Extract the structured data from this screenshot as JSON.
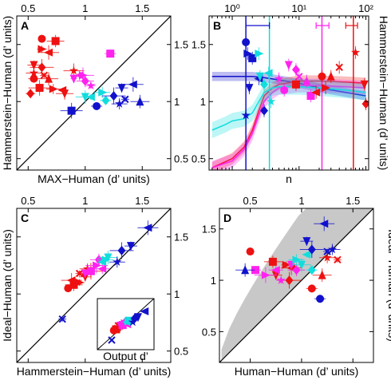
{
  "colors": {
    "red": "#ee1111",
    "magenta": "#ff22ee",
    "cyan": "#11dddd",
    "blue": "#1111cc",
    "gray": "#c8c8c8",
    "black": "#000000"
  },
  "chart_data": [
    {
      "panel": "A",
      "type": "scatter",
      "xlabel": "MAX−Human (d’ units)",
      "ylabel": "Hammerstein−Human (d’ units)",
      "xlim": [
        0.4,
        1.75
      ],
      "ylim": [
        0.4,
        1.75
      ],
      "xticks": [
        "0.5",
        "1",
        "1.5"
      ],
      "yticks": [
        "0.5",
        "1",
        "1.5"
      ],
      "x_axis_side": "top",
      "y_axis_side": "right",
      "diagonal": true,
      "series": [
        {
          "color": "red",
          "points": [
            [
              0.62,
              1.55
            ],
            [
              0.74,
              1.53
            ],
            [
              0.62,
              1.46
            ],
            [
              0.68,
              1.43
            ],
            [
              0.55,
              1.32
            ],
            [
              0.62,
              1.3
            ],
            [
              0.55,
              1.25
            ],
            [
              0.64,
              1.23
            ],
            [
              0.68,
              1.2
            ],
            [
              0.55,
              1.2
            ],
            [
              0.6,
              1.12
            ],
            [
              0.72,
              1.11
            ],
            [
              0.8,
              1.1
            ],
            [
              0.82,
              1.07
            ],
            [
              0.52,
              1.07
            ],
            [
              0.9,
              1.27
            ]
          ]
        },
        {
          "color": "magenta",
          "points": [
            [
              1.22,
              1.42
            ],
            [
              0.98,
              1.23
            ],
            [
              0.95,
              1.23
            ],
            [
              0.9,
              1.2
            ],
            [
              1.0,
              1.18
            ],
            [
              1.05,
              1.14
            ]
          ]
        },
        {
          "color": "cyan",
          "points": [
            [
              1.15,
              1.08
            ],
            [
              1.05,
              1.04
            ],
            [
              1.0,
              1.04
            ],
            [
              1.18,
              1.01
            ]
          ]
        },
        {
          "color": "blue",
          "points": [
            [
              1.42,
              1.15
            ],
            [
              1.32,
              1.12
            ],
            [
              1.25,
              1.05
            ],
            [
              1.3,
              0.98
            ],
            [
              1.35,
              1.02
            ],
            [
              1.48,
              1.0
            ],
            [
              1.1,
              0.96
            ],
            [
              0.88,
              0.92
            ]
          ]
        }
      ]
    },
    {
      "panel": "B",
      "type": "line",
      "xlabel": "n",
      "ylabel": "Hammerstein−Human (d’ units)",
      "xscale": "log",
      "xlim": [
        0.45,
        110
      ],
      "ylim": [
        0.4,
        1.75
      ],
      "xticks": [
        "10⁰",
        "10¹",
        "10²"
      ],
      "yticks": [
        "0.5",
        "1",
        "1.5"
      ],
      "x_axis_side": "top",
      "y_axis_side": "right",
      "series": [
        {
          "color": "blue",
          "x": [
            0.5,
            1,
            2,
            3,
            5,
            10,
            20,
            50,
            100
          ],
          "y": [
            1.22,
            1.22,
            1.22,
            1.21,
            1.19,
            1.16,
            1.12,
            1.08,
            1.05
          ]
        },
        {
          "color": "red",
          "x": [
            0.5,
            1,
            1.5,
            2,
            2.5,
            3,
            4,
            5,
            10,
            20,
            50,
            100
          ],
          "y": [
            0.42,
            0.5,
            0.6,
            0.75,
            0.92,
            1.05,
            1.12,
            1.15,
            1.18,
            1.18,
            1.17,
            1.16
          ]
        },
        {
          "color": "magenta",
          "x": [
            0.5,
            1,
            1.5,
            2,
            2.5,
            3,
            4,
            5,
            10,
            20,
            50,
            100
          ],
          "y": [
            0.42,
            0.48,
            0.58,
            0.72,
            0.88,
            1.0,
            1.08,
            1.12,
            1.14,
            1.14,
            1.13,
            1.12
          ]
        },
        {
          "color": "cyan",
          "x": [
            0.5,
            0.8,
            1,
            1.5,
            2,
            2.5,
            3,
            4,
            5,
            10,
            20,
            50,
            100
          ],
          "y": [
            0.75,
            0.8,
            0.83,
            0.85,
            0.9,
            1.0,
            1.08,
            1.12,
            1.13,
            1.13,
            1.12,
            1.1,
            1.08
          ]
        }
      ],
      "vlines": [
        {
          "color": "blue",
          "x": 1.6
        },
        {
          "color": "cyan",
          "x": 3.6
        },
        {
          "color": "magenta",
          "x": 22
        },
        {
          "color": "red",
          "x": 65
        }
      ],
      "top_errorbars": [
        {
          "color": "blue",
          "x": [
            1.6,
            3.6
          ]
        },
        {
          "color": "magenta",
          "x": [
            18,
            28
          ]
        },
        {
          "color": "red",
          "x": [
            50,
            75
          ]
        }
      ],
      "markers": [
        {
          "color": "blue",
          "points": [
            [
              1.6,
              1.52
            ],
            [
              2.0,
              1.38
            ],
            [
              1.7,
              1.42
            ],
            [
              2.5,
              1.2
            ],
            [
              1.8,
              1.12
            ],
            [
              3.0,
              0.92
            ],
            [
              1.6,
              0.88
            ]
          ]
        },
        {
          "color": "cyan",
          "points": [
            [
              2.5,
              1.42
            ],
            [
              3.5,
              1.25
            ],
            [
              2.6,
              1.22
            ],
            [
              3.0,
              1.15
            ],
            [
              3.8,
              1.0
            ]
          ]
        },
        {
          "color": "magenta",
          "points": [
            [
              7,
              1.32
            ],
            [
              9,
              1.28
            ],
            [
              5,
              1.2
            ],
            [
              10,
              1.22
            ],
            [
              13,
              1.18
            ],
            [
              6,
              1.1
            ],
            [
              15,
              1.05
            ]
          ]
        },
        {
          "color": "red",
          "points": [
            [
              70,
              1.43
            ],
            [
              40,
              1.3
            ],
            [
              30,
              1.22
            ],
            [
              22,
              1.22
            ],
            [
              9,
              1.15
            ],
            [
              25,
              1.12
            ],
            [
              18,
              1.08
            ],
            [
              95,
              1.15
            ],
            [
              100,
              0.98
            ]
          ]
        }
      ]
    },
    {
      "panel": "C",
      "type": "scatter",
      "xlabel": "Hammerstein−Human (d’ units)",
      "ylabel": "Ideal−Human (d’ units)",
      "xlim": [
        0.4,
        1.75
      ],
      "ylim": [
        0.4,
        1.75
      ],
      "xticks": [
        "0.5",
        "1",
        "1.5"
      ],
      "yticks": [
        "0.5",
        "1",
        "1.5"
      ],
      "x_axis_side": "top",
      "y_axis_side": "right",
      "diagonal": true,
      "inset_label": "Output d’",
      "series": [
        {
          "color": "red",
          "points": [
            [
              0.85,
              1.05
            ],
            [
              0.9,
              1.08
            ],
            [
              0.95,
              1.1
            ],
            [
              0.88,
              1.12
            ],
            [
              1.0,
              1.15
            ],
            [
              1.05,
              1.2
            ],
            [
              1.02,
              1.22
            ],
            [
              0.95,
              1.18
            ]
          ]
        },
        {
          "color": "magenta",
          "points": [
            [
              1.05,
              1.2
            ],
            [
              1.1,
              1.25
            ],
            [
              1.15,
              1.22
            ],
            [
              1.0,
              1.18
            ],
            [
              1.12,
              1.3
            ]
          ]
        },
        {
          "color": "cyan",
          "points": [
            [
              1.18,
              1.3
            ],
            [
              1.15,
              1.28
            ],
            [
              1.2,
              1.32
            ]
          ]
        },
        {
          "color": "blue",
          "points": [
            [
              1.55,
              1.58
            ],
            [
              1.4,
              1.42
            ],
            [
              1.32,
              1.38
            ],
            [
              1.28,
              1.28
            ],
            [
              0.8,
              0.78
            ]
          ]
        }
      ]
    },
    {
      "panel": "D",
      "type": "scatter",
      "xlabel": "Human−Human (d’ units)",
      "ylabel": "Ideal−Human (d’ units)",
      "xlim": [
        0.2,
        1.7
      ],
      "ylim": [
        0.2,
        1.7
      ],
      "xticks": [
        "0.5",
        "1",
        "1.5"
      ],
      "yticks": [
        "0.5",
        "1",
        "1.5"
      ],
      "x_axis_side": "top",
      "y_axis_side": "left",
      "diagonal": true,
      "shaded_region": true,
      "series": [
        {
          "color": "red",
          "points": [
            [
              0.5,
              1.28
            ],
            [
              0.72,
              1.18
            ],
            [
              0.85,
              1.15
            ],
            [
              0.9,
              1.12
            ],
            [
              0.75,
              1.05
            ],
            [
              0.88,
              1.0
            ],
            [
              1.25,
              1.22
            ],
            [
              1.35,
              1.2
            ],
            [
              1.2,
              1.05
            ],
            [
              1.1,
              0.92
            ]
          ]
        },
        {
          "color": "magenta",
          "points": [
            [
              0.55,
              1.1
            ],
            [
              0.65,
              1.05
            ],
            [
              0.75,
              1.1
            ],
            [
              0.9,
              1.15
            ],
            [
              0.95,
              1.1
            ],
            [
              0.8,
              1.0
            ]
          ]
        },
        {
          "color": "cyan",
          "points": [
            [
              0.95,
              1.2
            ],
            [
              1.05,
              1.25
            ],
            [
              1.0,
              1.15
            ],
            [
              1.1,
              1.1
            ]
          ]
        },
        {
          "color": "blue",
          "points": [
            [
              1.22,
              1.55
            ],
            [
              1.05,
              1.38
            ],
            [
              1.1,
              1.3
            ],
            [
              1.3,
              1.3
            ],
            [
              1.25,
              1.28
            ],
            [
              0.45,
              1.1
            ],
            [
              1.18,
              0.82
            ]
          ]
        }
      ]
    }
  ]
}
